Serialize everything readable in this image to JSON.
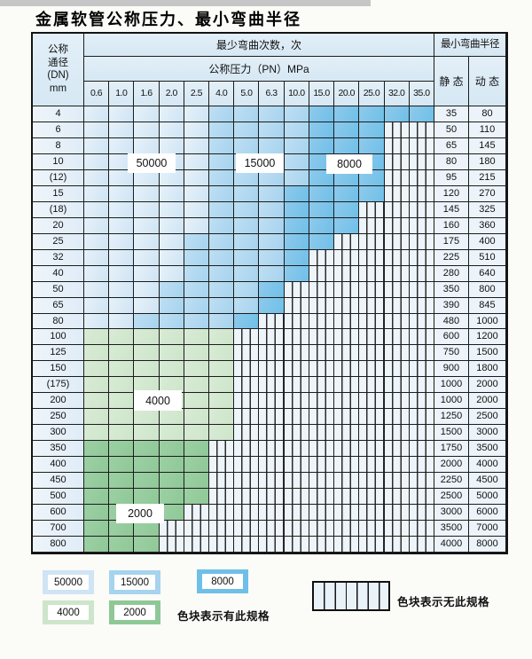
{
  "title": "金属软管公称压力、最小弯曲半径",
  "table": {
    "dn_header_lines": [
      "公称",
      "通径",
      "(DN)",
      "mm"
    ],
    "cycles_header": "最少弯曲次数，次",
    "pressure_header": "公称压力（PN）MPa",
    "radius_header": "最小弯曲半径",
    "static_header": "静 态",
    "dynamic_header": "动 态",
    "pressure_columns": [
      "0.6",
      "1.0",
      "1.6",
      "2.0",
      "2.5",
      "4.0",
      "5.0",
      "6.3",
      "10.0",
      "15.0",
      "20.0",
      "25.0",
      "32.0",
      "35.0"
    ],
    "rows": [
      {
        "dn": "4",
        "static": "35",
        "dynamic": "80",
        "zone": "blue",
        "light_end": 5,
        "mid_end": 9,
        "color_end": 14
      },
      {
        "dn": "6",
        "static": "50",
        "dynamic": "110",
        "zone": "blue",
        "light_end": 5,
        "mid_end": 9,
        "color_end": 12
      },
      {
        "dn": "8",
        "static": "65",
        "dynamic": "145",
        "zone": "blue",
        "light_end": 5,
        "mid_end": 9,
        "color_end": 12
      },
      {
        "dn": "10",
        "static": "80",
        "dynamic": "180",
        "zone": "blue",
        "light_end": 5,
        "mid_end": 9,
        "color_end": 12
      },
      {
        "dn": "(12)",
        "static": "95",
        "dynamic": "215",
        "zone": "blue",
        "light_end": 5,
        "mid_end": 9,
        "color_end": 12
      },
      {
        "dn": "15",
        "static": "120",
        "dynamic": "270",
        "zone": "blue",
        "light_end": 5,
        "mid_end": 8,
        "color_end": 12
      },
      {
        "dn": "(18)",
        "static": "145",
        "dynamic": "325",
        "zone": "blue",
        "light_end": 5,
        "mid_end": 8,
        "color_end": 11
      },
      {
        "dn": "20",
        "static": "160",
        "dynamic": "360",
        "zone": "blue",
        "light_end": 5,
        "mid_end": 8,
        "color_end": 11
      },
      {
        "dn": "25",
        "static": "175",
        "dynamic": "400",
        "zone": "blue",
        "light_end": 4,
        "mid_end": 8,
        "color_end": 10
      },
      {
        "dn": "32",
        "static": "225",
        "dynamic": "510",
        "zone": "blue",
        "light_end": 4,
        "mid_end": 8,
        "color_end": 9
      },
      {
        "dn": "40",
        "static": "280",
        "dynamic": "640",
        "zone": "blue",
        "light_end": 4,
        "mid_end": 8,
        "color_end": 9
      },
      {
        "dn": "50",
        "static": "350",
        "dynamic": "800",
        "zone": "blue",
        "light_end": 3,
        "mid_end": 7,
        "color_end": 8
      },
      {
        "dn": "65",
        "static": "390",
        "dynamic": "845",
        "zone": "blue",
        "light_end": 3,
        "mid_end": 7,
        "color_end": 8
      },
      {
        "dn": "80",
        "static": "480",
        "dynamic": "1000",
        "zone": "blue",
        "light_end": 2,
        "mid_end": 6,
        "color_end": 7
      },
      {
        "dn": "100",
        "static": "600",
        "dynamic": "1200",
        "zone": "green4000",
        "color_end": 6
      },
      {
        "dn": "125",
        "static": "750",
        "dynamic": "1500",
        "zone": "green4000",
        "color_end": 6
      },
      {
        "dn": "150",
        "static": "900",
        "dynamic": "1800",
        "zone": "green4000",
        "color_end": 6
      },
      {
        "dn": "(175)",
        "static": "1000",
        "dynamic": "2000",
        "zone": "green4000",
        "color_end": 6
      },
      {
        "dn": "200",
        "static": "1000",
        "dynamic": "2000",
        "zone": "green4000",
        "color_end": 6
      },
      {
        "dn": "250",
        "static": "1250",
        "dynamic": "2500",
        "zone": "green4000",
        "color_end": 6
      },
      {
        "dn": "300",
        "static": "1500",
        "dynamic": "3000",
        "zone": "green4000",
        "color_end": 6
      },
      {
        "dn": "350",
        "static": "1750",
        "dynamic": "3500",
        "zone": "green2000",
        "color_end": 5
      },
      {
        "dn": "400",
        "static": "2000",
        "dynamic": "4000",
        "zone": "green2000",
        "color_end": 5
      },
      {
        "dn": "450",
        "static": "2250",
        "dynamic": "4500",
        "zone": "green2000",
        "color_end": 5
      },
      {
        "dn": "500",
        "static": "2500",
        "dynamic": "5000",
        "zone": "green2000",
        "color_end": 5
      },
      {
        "dn": "600",
        "static": "3000",
        "dynamic": "6000",
        "zone": "green2000",
        "color_end": 4
      },
      {
        "dn": "700",
        "static": "3500",
        "dynamic": "7000",
        "zone": "green2000",
        "color_end": 3
      },
      {
        "dn": "800",
        "static": "4000",
        "dynamic": "8000",
        "zone": "green2000",
        "color_end": 3
      }
    ]
  },
  "region_labels": {
    "l50000": "50000",
    "l15000": "15000",
    "l8000": "8000",
    "l4000": "4000",
    "l2000": "2000"
  },
  "legend": {
    "swatches": [
      {
        "label": "50000",
        "color_key": "c50000"
      },
      {
        "label": "15000",
        "color_key": "c15000"
      },
      {
        "label": "8000",
        "color_key": "c8000"
      },
      {
        "label": "4000",
        "color_key": "c4000"
      },
      {
        "label": "2000",
        "color_key": "c2000"
      }
    ],
    "has_spec_note": "色块表示有此规格",
    "no_spec_note": "色块表示无此规格"
  },
  "colors": {
    "c50000": "#cfe4f4",
    "c15000": "#a6d3ee",
    "c8000": "#6fbfe8",
    "c4000": "#cde5ca",
    "c2000": "#8fc897",
    "hatch_bg": "#edf4fa",
    "header_bg": "#d6e8f4",
    "label_col_bg": "#dfecf7",
    "value_col_bg": "#ecf3fa"
  }
}
